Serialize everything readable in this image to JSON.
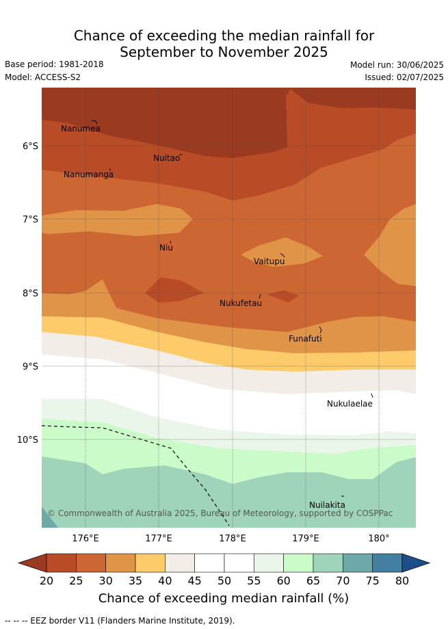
{
  "title_line1": "Chance of exceeding the median rainfall for",
  "title_line2": "September to November 2025",
  "base_period": "Base period: 1981-2018",
  "model": "Model: ACCESS-S2",
  "model_run": "Model run: 30/06/2025",
  "issued": "Issued: 02/07/2025",
  "lat_labels": [
    "6°S",
    "7°S",
    "8°S",
    "9°S",
    "10°S"
  ],
  "lon_labels": [
    "176°E",
    "177°E",
    "178°E",
    "179°E",
    "180°"
  ],
  "places": {
    "nanumea": "Nanumea",
    "nuitao": "Nuitao",
    "nanumanga": "Nanumanga",
    "niu": "Niu",
    "vaitupu": "Vaitupu",
    "nukufetau": "Nukufetau",
    "funafuti": "Funafuti",
    "nukulaelae": "Nukulaelae",
    "nuilakita": "Nuilakita"
  },
  "copyright": "© Commonwealth of Australia 2025, Bureau of Meteorology, supported by COSPPac",
  "colorbar": {
    "ticks": [
      "20",
      "25",
      "30",
      "35",
      "40",
      "45",
      "50",
      "55",
      "60",
      "65",
      "70",
      "75",
      "80"
    ],
    "colors": [
      "#9a3a20",
      "#b84c26",
      "#cc6633",
      "#e09448",
      "#fecb6a",
      "#f2ede7",
      "#ffffff",
      "#ffffff",
      "#ebf6ea",
      "#cbfbc9",
      "#9fd3ba",
      "#6fa8a8",
      "#437fa0",
      "#1a4f8c"
    ],
    "label": "Chance of exceeding median rainfall (%)"
  },
  "footer": "-- -- -- EEZ border V11 (Flanders Marine Institute, 2019)."
}
